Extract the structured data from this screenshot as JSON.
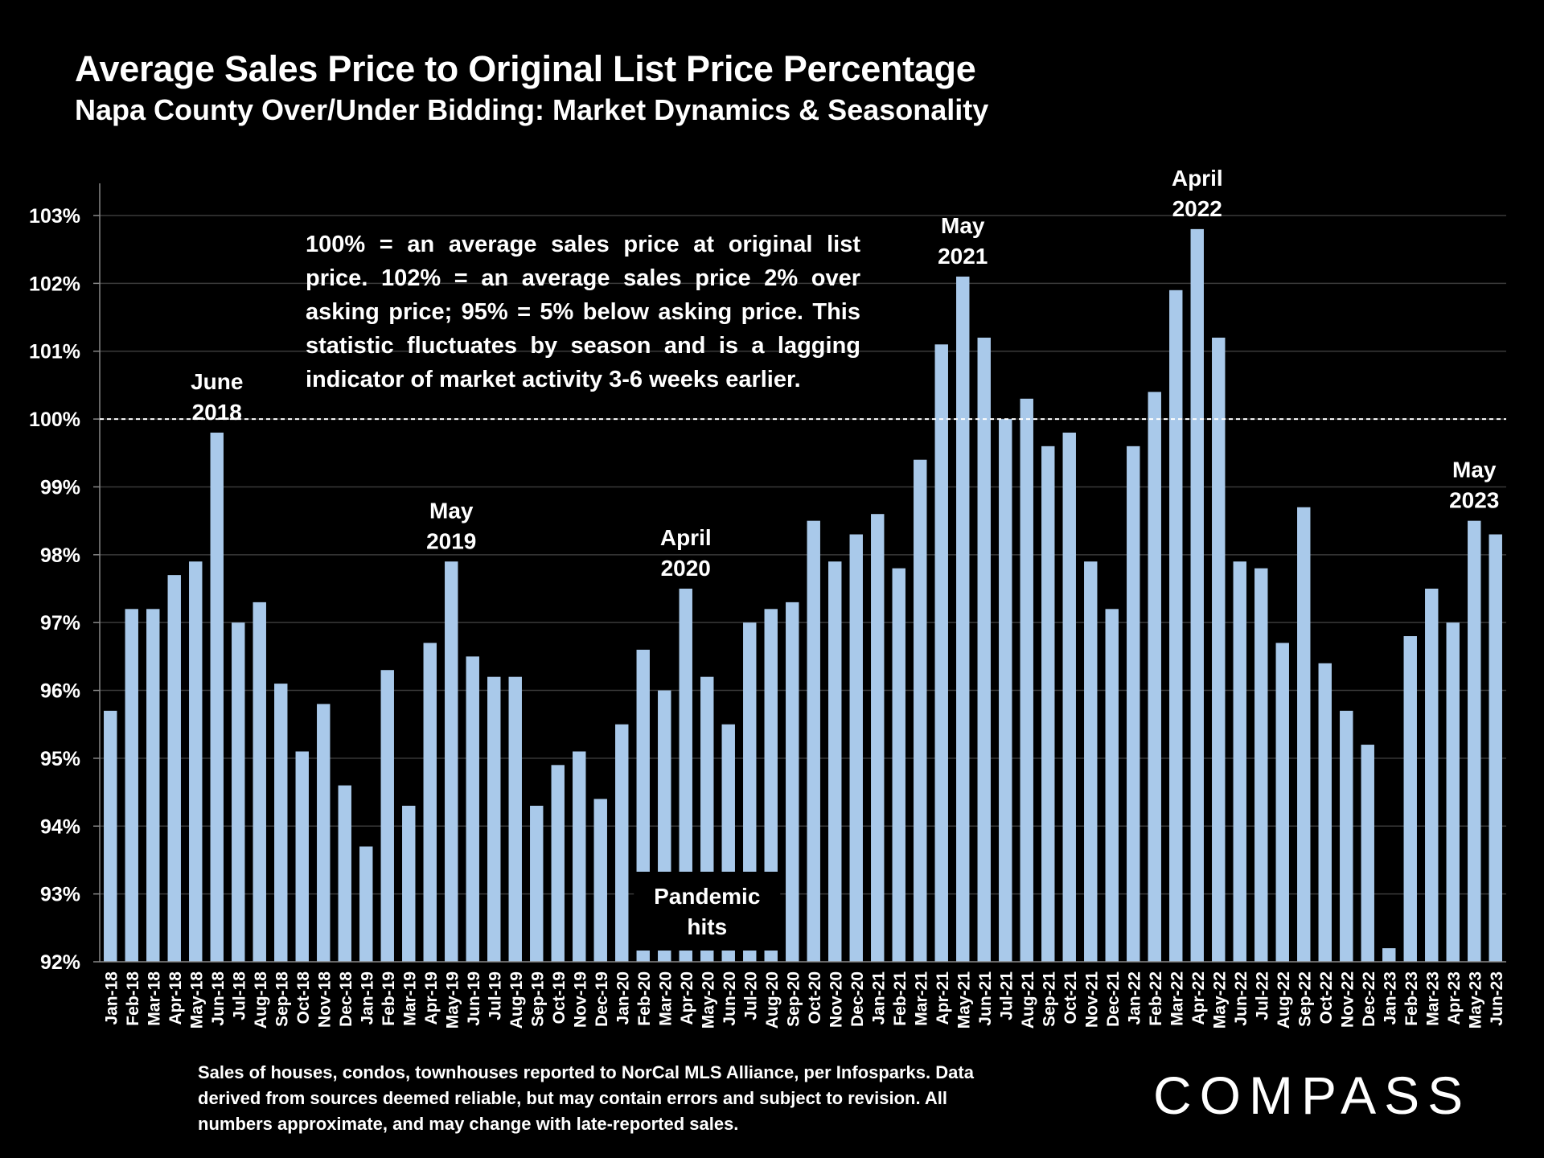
{
  "chart_data": {
    "type": "bar",
    "title": "Average Sales Price to Original List Price Percentage",
    "subtitle": "Napa County Over/Under Bidding: Market Dynamics & Seasonality",
    "ylim": [
      92,
      103
    ],
    "yticks": [
      "92%",
      "93%",
      "94%",
      "95%",
      "96%",
      "97%",
      "98%",
      "99%",
      "100%",
      "101%",
      "102%",
      "103%"
    ],
    "reference_line": 100,
    "bar_color": "#a9c9ea",
    "categories": [
      "Jan-18",
      "Feb-18",
      "Mar-18",
      "Apr-18",
      "May-18",
      "Jun-18",
      "Jul-18",
      "Aug-18",
      "Sep-18",
      "Oct-18",
      "Nov-18",
      "Dec-18",
      "Jan-19",
      "Feb-19",
      "Mar-19",
      "Apr-19",
      "May-19",
      "Jun-19",
      "Jul-19",
      "Aug-19",
      "Sep-19",
      "Oct-19",
      "Nov-19",
      "Dec-19",
      "Jan-20",
      "Feb-20",
      "Mar-20",
      "Apr-20",
      "May-20",
      "Jun-20",
      "Jul-20",
      "Aug-20",
      "Sep-20",
      "Oct-20",
      "Nov-20",
      "Dec-20",
      "Jan-21",
      "Feb-21",
      "Mar-21",
      "Apr-21",
      "May-21",
      "Jun-21",
      "Jul-21",
      "Aug-21",
      "Sep-21",
      "Oct-21",
      "Nov-21",
      "Dec-21",
      "Jan-22",
      "Feb-22",
      "Mar-22",
      "Apr-22",
      "May-22",
      "Jun-22",
      "Jul-22",
      "Aug-22",
      "Sep-22",
      "Oct-22",
      "Nov-22",
      "Dec-22",
      "Jan-23",
      "Feb-23",
      "Mar-23",
      "Apr-23",
      "May-23",
      "Jun-23"
    ],
    "values": [
      95.7,
      97.2,
      97.2,
      97.7,
      97.9,
      99.8,
      97.0,
      97.3,
      96.1,
      95.1,
      95.8,
      94.6,
      93.7,
      96.3,
      94.3,
      96.7,
      97.9,
      96.5,
      96.2,
      96.2,
      94.3,
      94.9,
      95.1,
      94.4,
      95.5,
      96.6,
      96.0,
      97.5,
      96.2,
      95.5,
      97.0,
      97.2,
      97.3,
      98.5,
      97.9,
      98.3,
      98.6,
      97.8,
      99.4,
      101.1,
      102.1,
      101.2,
      100.0,
      100.3,
      99.6,
      99.8,
      97.9,
      97.2,
      99.6,
      100.4,
      101.9,
      102.8,
      101.2,
      97.9,
      97.8,
      96.7,
      98.7,
      96.4,
      95.7,
      95.2,
      92.2,
      96.8,
      97.5,
      97.0,
      98.5,
      98.3
    ],
    "annotations": [
      {
        "index": 5,
        "lines": [
          "June",
          "2018"
        ]
      },
      {
        "index": 16,
        "lines": [
          "May",
          "2019"
        ]
      },
      {
        "index": 27,
        "lines": [
          "April",
          "2020"
        ]
      },
      {
        "index": 40,
        "lines": [
          "May",
          "2021"
        ]
      },
      {
        "index": 51,
        "lines": [
          "April",
          "2022"
        ]
      },
      {
        "index": 64,
        "lines": [
          "May",
          "2023"
        ]
      }
    ],
    "callout": {
      "index": 28,
      "lines": [
        "Pandemic",
        "hits"
      ]
    }
  },
  "explanation": "100% = an average sales price at original list price. 102% = an average sales price 2% over asking price; 95% = 5% below asking price. This statistic fluctuates by season and is a lagging indicator of market activity 3-6 weeks earlier.",
  "footer": "Sales of houses, condos, townhouses reported to NorCal MLS Alliance, per Infosparks. Data derived from sources deemed reliable, but may contain errors and subject to revision. All numbers approximate, and may change with late-reported sales.",
  "logo": "COMPASS"
}
